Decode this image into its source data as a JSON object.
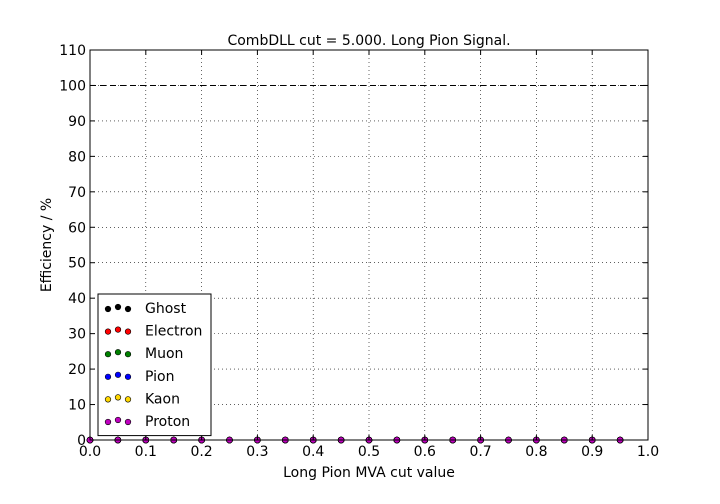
{
  "chart_data": {
    "type": "scatter",
    "title": "CombDLL cut = 5.000. Long Pion Signal.",
    "xlabel": "Long Pion MVA cut value",
    "ylabel": "Efficiency / %",
    "xlim": [
      0.0,
      1.0
    ],
    "ylim": [
      0,
      110
    ],
    "x_ticks": [
      "0.0",
      "0.1",
      "0.2",
      "0.3",
      "0.4",
      "0.5",
      "0.6",
      "0.7",
      "0.8",
      "0.9",
      "1.0"
    ],
    "y_ticks": [
      "0",
      "10",
      "20",
      "30",
      "40",
      "50",
      "60",
      "70",
      "80",
      "90",
      "100",
      "110"
    ],
    "grid": true,
    "legend_position": "lower-left",
    "reference_line": {
      "y": 100,
      "style": "dashed"
    },
    "x": [
      0.0,
      0.05,
      0.1,
      0.15,
      0.2,
      0.25,
      0.3,
      0.35,
      0.4,
      0.45,
      0.5,
      0.55,
      0.6,
      0.65,
      0.7,
      0.75,
      0.8,
      0.85,
      0.9,
      0.95
    ],
    "series": [
      {
        "name": "Ghost",
        "color": "#000000",
        "values": [
          0,
          0,
          0,
          0,
          0,
          0,
          0,
          0,
          0,
          0,
          0,
          0,
          0,
          0,
          0,
          0,
          0,
          0,
          0,
          0
        ]
      },
      {
        "name": "Electron",
        "color": "#ff0000",
        "values": [
          0,
          0,
          0,
          0,
          0,
          0,
          0,
          0,
          0,
          0,
          0,
          0,
          0,
          0,
          0,
          0,
          0,
          0,
          0,
          0
        ]
      },
      {
        "name": "Muon",
        "color": "#008000",
        "values": [
          0,
          0,
          0,
          0,
          0,
          0,
          0,
          0,
          0,
          0,
          0,
          0,
          0,
          0,
          0,
          0,
          0,
          0,
          0,
          0
        ]
      },
      {
        "name": "Pion",
        "color": "#0000ff",
        "values": [
          0,
          0,
          0,
          0,
          0,
          0,
          0,
          0,
          0,
          0,
          0,
          0,
          0,
          0,
          0,
          0,
          0,
          0,
          0,
          0
        ]
      },
      {
        "name": "Kaon",
        "color": "#ffd700",
        "values": [
          0,
          0,
          0,
          0,
          0,
          0,
          0,
          0,
          0,
          0,
          0,
          0,
          0,
          0,
          0,
          0,
          0,
          0,
          0,
          0
        ]
      },
      {
        "name": "Proton",
        "color": "#bf00bf",
        "values": [
          0,
          0,
          0,
          0,
          0,
          0,
          0,
          0,
          0,
          0,
          0,
          0,
          0,
          0,
          0,
          0,
          0,
          0,
          0,
          0
        ]
      }
    ]
  }
}
